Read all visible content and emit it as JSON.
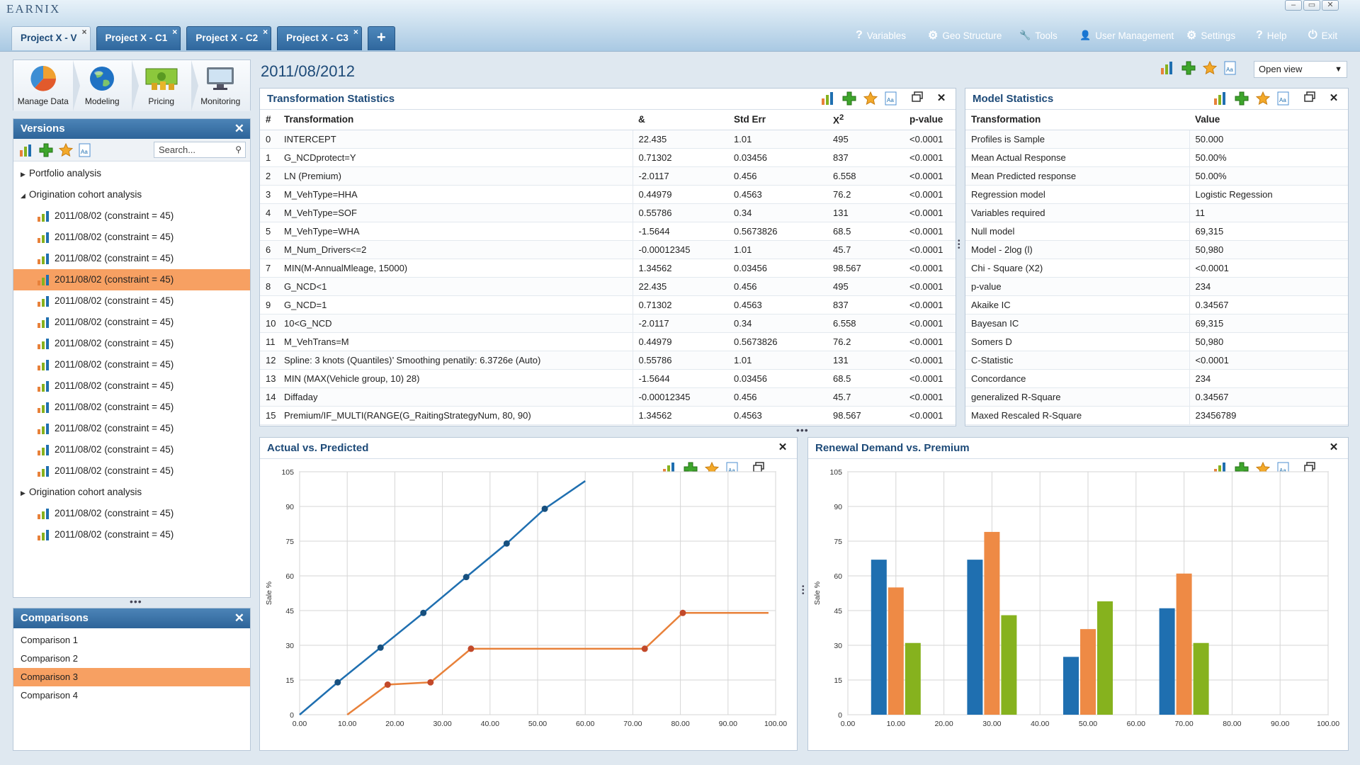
{
  "app": {
    "logo": "EARNIX"
  },
  "window_controls": [
    "–",
    "▭",
    "✕"
  ],
  "tabs": [
    {
      "label": "Project X - V",
      "active": true
    },
    {
      "label": "Project X - C1"
    },
    {
      "label": "Project X - C2"
    },
    {
      "label": "Project X - C3"
    }
  ],
  "tab_add": "+",
  "tab_close": "×",
  "menu": [
    {
      "icon": "question-icon",
      "glyph": "?",
      "label": "Variables"
    },
    {
      "icon": "globe-gear-icon",
      "glyph": "⚙",
      "label": "Geo Structure"
    },
    {
      "icon": "wrench-icon",
      "glyph": "🔧",
      "label": "Tools"
    },
    {
      "icon": "user-icon",
      "glyph": "👤",
      "label": "User Management"
    },
    {
      "icon": "gear-icon",
      "glyph": "⚙",
      "label": "Settings"
    },
    {
      "icon": "help-icon",
      "glyph": "?",
      "label": "Help"
    },
    {
      "icon": "power-icon",
      "glyph": "⏻",
      "label": "Exit"
    }
  ],
  "modules": [
    {
      "label": "Manage Data",
      "icon": "pie-chart-icon"
    },
    {
      "label": "Modeling",
      "icon": "globe-icon"
    },
    {
      "label": "Pricing",
      "icon": "money-icon"
    },
    {
      "label": "Monitoring",
      "icon": "monitor-icon"
    }
  ],
  "versions": {
    "title": "Versions",
    "search_placeholder": "Search...",
    "groups": [
      {
        "label": "Portfolio analysis",
        "expanded": false,
        "items": []
      },
      {
        "label": "Origination cohort analysis",
        "expanded": true,
        "items": [
          "2011/08/02 (constraint = 45)",
          "2011/08/02 (constraint = 45)",
          "2011/08/02 (constraint = 45)",
          "2011/08/02 (constraint = 45)",
          "2011/08/02 (constraint = 45)",
          "2011/08/02 (constraint = 45)",
          "2011/08/02 (constraint = 45)",
          "2011/08/02 (constraint = 45)",
          "2011/08/02 (constraint = 45)",
          "2011/08/02 (constraint = 45)",
          "2011/08/02 (constraint = 45)",
          "2011/08/02 (constraint = 45)",
          "2011/08/02 (constraint = 45)"
        ]
      },
      {
        "label": "Origination cohort analysis",
        "expanded": false,
        "items": [
          "2011/08/02 (constraint = 45)",
          "2011/08/02 (constraint = 45)"
        ]
      }
    ],
    "selected_index": 3
  },
  "comparisons": {
    "title": "Comparisons",
    "items": [
      "Comparison 1",
      "Comparison 2",
      "Comparison 3",
      "Comparison 4"
    ],
    "selected_index": 2
  },
  "main": {
    "title": "2011/08/2012",
    "view_select": "Open view"
  },
  "transformation_statistics": {
    "title": "Transformation Statistics",
    "columns": [
      "#",
      "Transformation",
      "&",
      "Std Err",
      "X",
      "p-value"
    ],
    "chi_sup": "2",
    "rows": [
      [
        "0",
        "INTERCEPT",
        "22.435",
        "1.01",
        "495",
        "<0.0001"
      ],
      [
        "1",
        "G_NCDprotect=Y",
        "0.71302",
        "0.03456",
        "837",
        "<0.0001"
      ],
      [
        "2",
        "LN (Premium)",
        "-2.0117",
        "0.456",
        "6.558",
        "<0.0001"
      ],
      [
        "3",
        "M_VehType=HHA",
        "0.44979",
        "0.4563",
        "76.2",
        "<0.0001"
      ],
      [
        "4",
        "M_VehType=SOF",
        "0.55786",
        "0.34",
        "131",
        "<0.0001"
      ],
      [
        "5",
        "M_VehType=WHA",
        "-1.5644",
        "0.5673826",
        "68.5",
        "<0.0001"
      ],
      [
        "6",
        "M_Num_Drivers<=2",
        "-0.00012345",
        "1.01",
        "45.7",
        "<0.0001"
      ],
      [
        "7",
        "MIN(M-AnnualMleage, 15000)",
        "1.34562",
        "0.03456",
        "98.567",
        "<0.0001"
      ],
      [
        "8",
        "G_NCD<1",
        "22.435",
        "0.456",
        "495",
        "<0.0001"
      ],
      [
        "9",
        "G_NCD=1",
        "0.71302",
        "0.4563",
        "837",
        "<0.0001"
      ],
      [
        "10",
        "10<G_NCD",
        "-2.0117",
        "0.34",
        "6.558",
        "<0.0001"
      ],
      [
        "11",
        "M_VehTrans=M",
        "0.44979",
        "0.5673826",
        "76.2",
        "<0.0001"
      ],
      [
        "12",
        "Spline: 3 knots (Quantiles)’ Smoothing penatily: 6.3726e (Auto)",
        "0.55786",
        "1.01",
        "131",
        "<0.0001"
      ],
      [
        "13",
        "MIN (MAX(Vehicle group, 10) 28)",
        "-1.5644",
        "0.03456",
        "68.5",
        "<0.0001"
      ],
      [
        "14",
        "Diffaday",
        "-0.00012345",
        "0.456",
        "45.7",
        "<0.0001"
      ],
      [
        "15",
        "Premium/IF_MULTI(RANGE(G_RaitingStrategyNum, 80, 90)",
        "1.34562",
        "0.4563",
        "98.567",
        "<0.0001"
      ]
    ]
  },
  "model_statistics": {
    "title": "Model Statistics",
    "columns": [
      "Transformation",
      "Value"
    ],
    "rows": [
      [
        "Profiles is Sample",
        "50.000"
      ],
      [
        "Mean Actual Response",
        "50.00%"
      ],
      [
        "Mean Predicted response",
        "50.00%"
      ],
      [
        "Regression model",
        "Logistic Regession"
      ],
      [
        "Variables required",
        "11"
      ],
      [
        "Null model",
        "69,315"
      ],
      [
        "Model - 2log (l)",
        "50,980"
      ],
      [
        "Chi - Square (X2)",
        "<0.0001"
      ],
      [
        "p-value",
        "234"
      ],
      [
        "Akaike IC",
        "0.34567"
      ],
      [
        "Bayesan IC",
        "69,315"
      ],
      [
        "Somers D",
        "50,980"
      ],
      [
        "C-Statistic",
        "<0.0001"
      ],
      [
        "Concordance",
        "234"
      ],
      [
        "generalized R-Square",
        "0.34567"
      ],
      [
        "Maxed Rescaled R-Square",
        "23456789"
      ]
    ]
  },
  "chart_data": [
    {
      "type": "line",
      "title": "Actual vs. Predicted",
      "ylabel": "Sale %",
      "xlim": [
        0,
        100
      ],
      "ylim": [
        0,
        105
      ],
      "x_ticks": [
        "0.00",
        "10.00",
        "20.00",
        "30.00",
        "40.00",
        "50.00",
        "60.00",
        "70.00",
        "80.00",
        "90.00",
        "100.00"
      ],
      "y_ticks": [
        "0",
        "15",
        "30",
        "45",
        "60",
        "75",
        "90",
        "105"
      ],
      "grid": true,
      "series": [
        {
          "color": "#1f6fb0",
          "x": [
            0,
            8,
            17,
            26,
            35,
            43.5,
            51.5,
            60
          ],
          "y": [
            0,
            14,
            29,
            44,
            59.5,
            74,
            89,
            101
          ],
          "markers": [
            8,
            17,
            26,
            35,
            43.5,
            51.5
          ]
        },
        {
          "color": "#e8813a",
          "x": [
            10,
            18.5,
            27.5,
            36,
            72.5,
            80.5,
            98.5
          ],
          "y": [
            0,
            13,
            14,
            28.5,
            28.5,
            44,
            44
          ],
          "markers": [
            18.5,
            27.5,
            36,
            72.5,
            80.5
          ]
        }
      ]
    },
    {
      "type": "bar",
      "title": "Renewal Demand vs. Premium",
      "ylabel": "Sale %",
      "xlim": [
        0,
        100
      ],
      "ylim": [
        0,
        105
      ],
      "x_ticks": [
        "0.00",
        "10.00",
        "20.00",
        "30.00",
        "40.00",
        "50.00",
        "60.00",
        "70.00",
        "80.00",
        "90.00",
        "100.00"
      ],
      "y_ticks": [
        "0",
        "15",
        "30",
        "45",
        "60",
        "75",
        "90",
        "105"
      ],
      "grid": true,
      "groups_x": [
        10,
        30,
        50,
        70
      ],
      "series": [
        {
          "color": "#1f6fb0",
          "values": [
            67,
            67,
            25,
            46
          ]
        },
        {
          "color": "#ee8a45",
          "values": [
            55,
            79,
            37,
            61
          ]
        },
        {
          "color": "#86b21e",
          "values": [
            31,
            43,
            49,
            31
          ]
        }
      ]
    }
  ]
}
